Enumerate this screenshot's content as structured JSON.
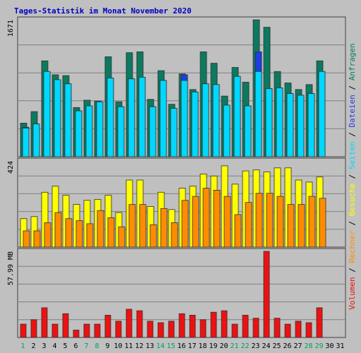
{
  "chart_data": {
    "type": "bar",
    "title": "Tages-Statistik im Monat November 2020",
    "categories": [
      "1",
      "2",
      "3",
      "4",
      "5",
      "6",
      "7",
      "8",
      "9",
      "10",
      "11",
      "12",
      "13",
      "14",
      "15",
      "16",
      "17",
      "18",
      "19",
      "20",
      "21",
      "22",
      "23",
      "24",
      "25",
      "26",
      "27",
      "28",
      "29",
      "30",
      "31"
    ],
    "weekend_days": [
      "1",
      "7",
      "8",
      "14",
      "15",
      "21",
      "22",
      "28",
      "29"
    ],
    "panels": [
      {
        "id": "hits",
        "max_label": "1671",
        "max": 1671,
        "series": [
          {
            "name": "Anfragen",
            "color": "#0b7a5f",
            "values": [
              410,
              550,
              1170,
              1000,
              990,
              600,
              690,
              680,
              1220,
              670,
              1270,
              1280,
              700,
              1050,
              640,
              1010,
              820,
              1280,
              1140,
              740,
              1090,
              910,
              1670,
              1580,
              1040,
              900,
              820,
              880,
              1170,
              0,
              0
            ]
          },
          {
            "name": "Dateien",
            "color": "#1e3fe0",
            "values": [
              360,
              400,
              1040,
              940,
              890,
              560,
              620,
              670,
              960,
              610,
              950,
              970,
              610,
              930,
              590,
              1000,
              790,
              890,
              880,
              630,
              980,
              620,
              1280,
              830,
              840,
              770,
              750,
              770,
              1040,
              0,
              0
            ]
          },
          {
            "name": "Seiten",
            "color": "#00d8ff",
            "values": [
              350,
              400,
              1040,
              940,
              890,
              560,
              620,
              670,
              960,
              610,
              950,
              970,
              610,
              930,
              590,
              930,
              790,
              890,
              880,
              630,
              980,
              620,
              1040,
              830,
              840,
              770,
              750,
              770,
              1040,
              0,
              0
            ]
          }
        ]
      },
      {
        "id": "visits",
        "max_label": "424",
        "max": 424,
        "series": [
          {
            "name": "Besuche",
            "color": "#ffff00",
            "values": [
              140,
              150,
              270,
              300,
              255,
              210,
              230,
              235,
              255,
              170,
              330,
              330,
              200,
              270,
              185,
              290,
              300,
              360,
              350,
              400,
              310,
              375,
              380,
              370,
              390,
              390,
              330,
              320,
              345,
              0,
              0
            ]
          },
          {
            "name": "Rechner",
            "color": "#ff8c00",
            "values": [
              80,
              80,
              120,
              170,
              140,
              130,
              115,
              180,
              145,
              100,
              210,
              210,
              110,
              190,
              120,
              230,
              250,
              290,
              280,
              250,
              160,
              220,
              265,
              265,
              250,
              210,
              210,
              250,
              240,
              0,
              0
            ]
          }
        ]
      },
      {
        "id": "volume",
        "max_label": "57.99 MB",
        "max": 57.99,
        "series": [
          {
            "name": "Volumen",
            "color": "#ee1111",
            "values": [
              9,
              12,
              20,
              9,
              16,
              5,
              9,
              9,
              15,
              11,
              19,
              18,
              11,
              10,
              11,
              16,
              15,
              12,
              17,
              18,
              9,
              15,
              13,
              57.99,
              13,
              9,
              11,
              10,
              20,
              0,
              0
            ]
          }
        ]
      }
    ],
    "legend_right": [
      {
        "text": "Volumen",
        "color": "#ee1111"
      },
      {
        "text": " / ",
        "color": "#000000"
      },
      {
        "text": "Rechner",
        "color": "#ff8c00"
      },
      {
        "text": " / ",
        "color": "#000000"
      },
      {
        "text": "Besuche",
        "color": "#ffff00"
      },
      {
        "text": " / ",
        "color": "#000000"
      },
      {
        "text": "Seiten",
        "color": "#00d8ff"
      },
      {
        "text": " / ",
        "color": "#000000"
      },
      {
        "text": "Dateien",
        "color": "#1e3fe0"
      },
      {
        "text": " / ",
        "color": "#000000"
      },
      {
        "text": "Anfragen",
        "color": "#0b7a5f"
      }
    ],
    "colors": {
      "background": "#c0c0c0",
      "title": "#0000c0",
      "weekday_label": "#000000",
      "weekend_label": "#00a060",
      "grid": "#808080"
    }
  }
}
